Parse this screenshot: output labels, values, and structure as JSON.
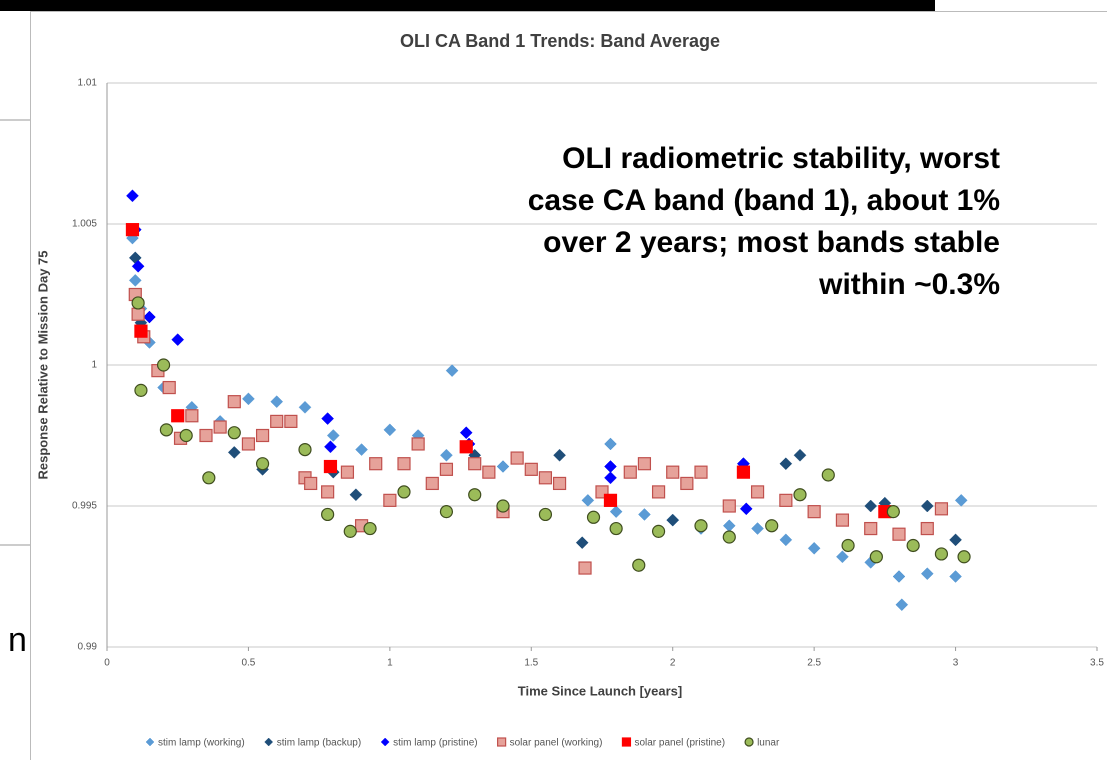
{
  "chart_data": {
    "type": "scatter",
    "title": "OLI CA Band 1 Trends: Band Average",
    "x_label": "Time Since Launch [years]",
    "y_label": "Response Relative to Mission Day 75",
    "annotation": [
      "OLI radiometric stability, worst",
      "case CA band (band 1), about 1%",
      "over 2 years; most bands stable",
      "within ~0.3%"
    ],
    "page_fragment": "n",
    "xlim": [
      0,
      3.5
    ],
    "xticks": [
      0,
      0.5,
      1,
      1.5,
      2,
      2.5,
      3,
      3.5
    ],
    "ylim": [
      0.99,
      1.01
    ],
    "yticks": [
      0.99,
      0.995,
      1,
      1.005,
      1.01
    ],
    "grid": true,
    "legend": "bottom",
    "series": [
      {
        "name": "stim lamp (working)",
        "color": "#5b9bd5",
        "marker": "diamond",
        "x": [
          0.09,
          0.1,
          0.12,
          0.15,
          0.2,
          0.3,
          0.4,
          0.5,
          0.6,
          0.7,
          0.8,
          0.9,
          1.0,
          1.1,
          1.2,
          1.22,
          1.3,
          1.4,
          1.5,
          1.6,
          1.7,
          1.78,
          1.8,
          1.9,
          2.0,
          2.1,
          2.2,
          2.3,
          2.4,
          2.5,
          2.6,
          2.7,
          2.8,
          2.81,
          2.9,
          3.0,
          3.02
        ],
        "values": [
          1.0045,
          1.003,
          1.002,
          1.0008,
          0.9992,
          0.9985,
          0.998,
          0.9988,
          0.9987,
          0.9985,
          0.9975,
          0.997,
          0.9977,
          0.9975,
          0.9968,
          0.9998,
          0.9966,
          0.9964,
          0.9963,
          0.9958,
          0.9952,
          0.9972,
          0.9948,
          0.9947,
          0.9945,
          0.9942,
          0.9943,
          0.9942,
          0.9938,
          0.9935,
          0.9932,
          0.993,
          0.9925,
          0.9915,
          0.9926,
          0.9925,
          0.9952
        ]
      },
      {
        "name": "stim lamp (backup)",
        "color": "#1f4e79",
        "marker": "diamond",
        "x": [
          0.1,
          0.12,
          0.45,
          0.55,
          0.8,
          0.88,
          1.1,
          1.3,
          1.6,
          1.68,
          2.0,
          2.25,
          2.4,
          2.45,
          2.7,
          2.75,
          2.9,
          3.0
        ],
        "values": [
          1.0038,
          1.0015,
          0.9969,
          0.9963,
          0.9962,
          0.9954,
          0.9972,
          0.9968,
          0.9968,
          0.9937,
          0.9945,
          0.9965,
          0.9965,
          0.9968,
          0.995,
          0.9951,
          0.995,
          0.9938
        ]
      },
      {
        "name": "stim lamp (pristine)",
        "color": "#0000ff",
        "marker": "diamond",
        "x": [
          0.09,
          0.1,
          0.11,
          0.15,
          0.25,
          0.78,
          0.79,
          1.27,
          1.28,
          1.78,
          1.78,
          2.25,
          2.26,
          2.75
        ],
        "values": [
          1.006,
          1.0048,
          1.0035,
          1.0017,
          1.0009,
          0.9981,
          0.9971,
          0.9976,
          0.9972,
          0.9964,
          0.996,
          0.9965,
          0.9949,
          0.9948
        ]
      },
      {
        "name": "solar panel (working)",
        "color": "#e6a29a",
        "marker": "square",
        "x": [
          0.1,
          0.11,
          0.13,
          0.18,
          0.22,
          0.26,
          0.3,
          0.35,
          0.4,
          0.45,
          0.5,
          0.55,
          0.6,
          0.65,
          0.7,
          0.72,
          0.78,
          0.85,
          0.9,
          0.95,
          1.0,
          1.05,
          1.1,
          1.15,
          1.2,
          1.3,
          1.35,
          1.4,
          1.45,
          1.5,
          1.55,
          1.6,
          1.69,
          1.75,
          1.85,
          1.9,
          1.95,
          2.0,
          2.05,
          2.1,
          2.2,
          2.3,
          2.4,
          2.5,
          2.6,
          2.7,
          2.8,
          2.9,
          2.95
        ],
        "values": [
          1.0025,
          1.0018,
          1.001,
          0.9998,
          0.9992,
          0.9974,
          0.9982,
          0.9975,
          0.9978,
          0.9987,
          0.9972,
          0.9975,
          0.998,
          0.998,
          0.996,
          0.9958,
          0.9955,
          0.9962,
          0.9943,
          0.9965,
          0.9952,
          0.9965,
          0.9972,
          0.9958,
          0.9963,
          0.9965,
          0.9962,
          0.9948,
          0.9967,
          0.9963,
          0.996,
          0.9958,
          0.9928,
          0.9955,
          0.9962,
          0.9965,
          0.9955,
          0.9962,
          0.9958,
          0.9962,
          0.995,
          0.9955,
          0.9952,
          0.9948,
          0.9945,
          0.9942,
          0.994,
          0.9942,
          0.9949
        ]
      },
      {
        "name": "solar panel (pristine)",
        "color": "#ff0000",
        "marker": "square",
        "x": [
          0.09,
          0.12,
          0.25,
          0.79,
          1.27,
          1.78,
          2.25,
          2.75
        ],
        "values": [
          1.0048,
          1.0012,
          0.9982,
          0.9964,
          0.9971,
          0.9952,
          0.9962,
          0.9948
        ]
      },
      {
        "name": "lunar",
        "color": "#9bbb59",
        "marker": "circle",
        "x": [
          0.11,
          0.12,
          0.2,
          0.21,
          0.28,
          0.36,
          0.45,
          0.55,
          0.7,
          0.78,
          0.86,
          0.93,
          1.05,
          1.2,
          1.3,
          1.4,
          1.55,
          1.72,
          1.8,
          1.88,
          1.95,
          2.1,
          2.2,
          2.35,
          2.45,
          2.55,
          2.62,
          2.72,
          2.78,
          2.85,
          2.95,
          3.03
        ],
        "values": [
          1.0022,
          0.9991,
          1.0,
          0.9977,
          0.9975,
          0.996,
          0.9976,
          0.9965,
          0.997,
          0.9947,
          0.9941,
          0.9942,
          0.9955,
          0.9948,
          0.9954,
          0.995,
          0.9947,
          0.9946,
          0.9942,
          0.9929,
          0.9941,
          0.9943,
          0.9939,
          0.9943,
          0.9954,
          0.9961,
          0.9936,
          0.9932,
          0.9948,
          0.9936,
          0.9933,
          0.9932
        ]
      }
    ]
  }
}
